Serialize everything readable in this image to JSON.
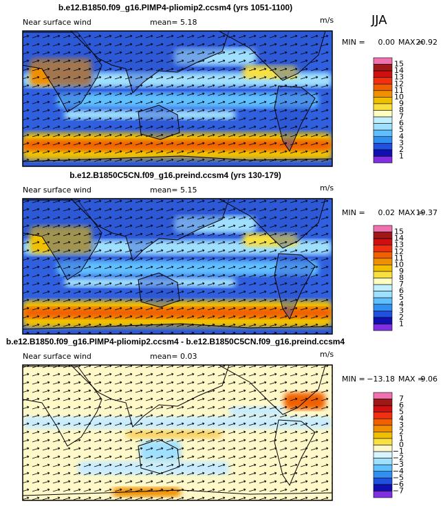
{
  "header": {
    "season": "JJA"
  },
  "panels": [
    {
      "title": "b.e12.B1850.f09_g16.PIMP4-pliomip2.ccsm4 (yrs 1051-1100)",
      "field": "Near surface wind",
      "mean_label": "mean=",
      "mean": "5.18",
      "units": "m/s",
      "min_label": "MIN =",
      "min": "0.00",
      "max_label": "MAX =",
      "max": "20.92",
      "colorbar": [
        "15",
        "14",
        "13",
        "12",
        "11",
        "10",
        "9",
        "8",
        "7",
        "6",
        "5",
        "4",
        "3",
        "2",
        "1"
      ]
    },
    {
      "title": "b.e12.B1850C5CN.f09_g16.preind.ccsm4 (yrs 130-179)",
      "field": "Near surface wind",
      "mean_label": "mean=",
      "mean": "5.15",
      "units": "m/s",
      "min_label": "MIN =",
      "min": "0.02",
      "max_label": "MAX =",
      "max": "19.37",
      "colorbar": [
        "15",
        "14",
        "13",
        "12",
        "11",
        "10",
        "9",
        "8",
        "7",
        "6",
        "5",
        "4",
        "3",
        "2",
        "1"
      ]
    },
    {
      "title": "b.e12.B1850.f09_g16.PIMP4-pliomip2.ccsm4 - b.e12.B1850C5CN.f09_g16.preind.ccsm4",
      "field": "Near surface wind",
      "mean_label": "mean=",
      "mean": "0.03",
      "units": "m/s",
      "min_label": "MIN =",
      "min": "−13.18",
      "max_label": "MAX =",
      "max": "9.06",
      "colorbar": [
        "7",
        "6",
        "5",
        "4",
        "3",
        "2",
        "1",
        "0",
        "−1",
        "−2",
        "−3",
        "−4",
        "−5",
        "−6",
        "−7"
      ]
    }
  ]
}
